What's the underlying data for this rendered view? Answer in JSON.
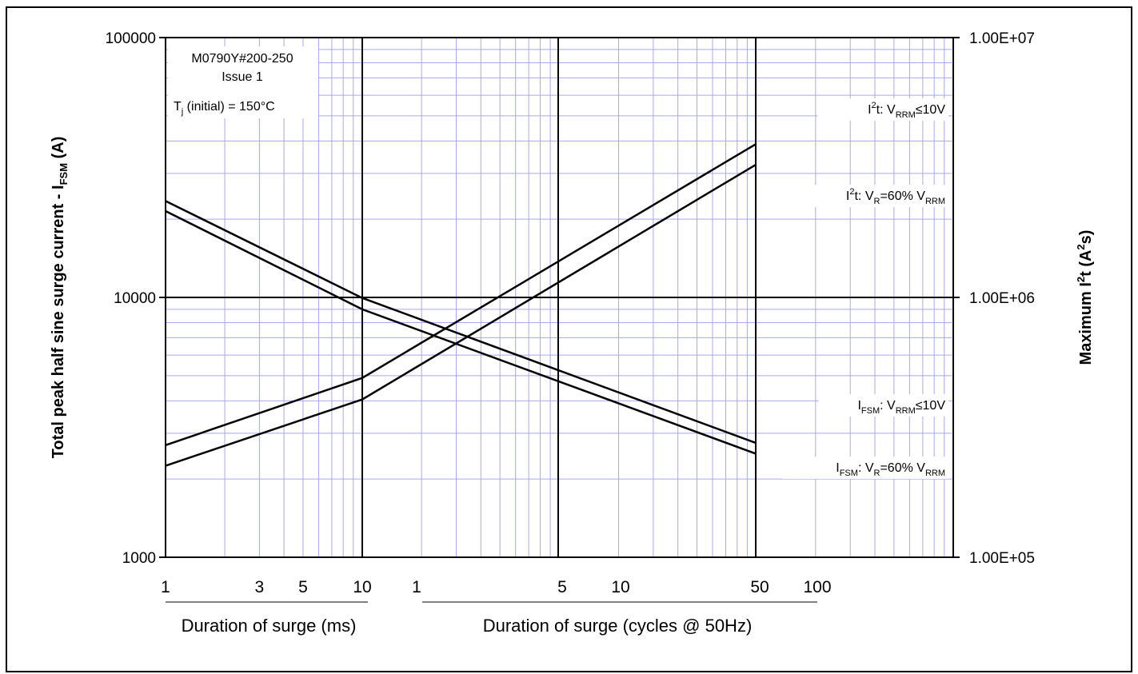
{
  "chart_data": {
    "type": "line",
    "y_scale": "log",
    "y_range": [
      1000,
      100000
    ],
    "y_ticks": [
      "100000",
      "10000",
      "1000"
    ],
    "y2_scale": "log",
    "y2_range": [
      100000,
      10000000
    ],
    "y2_ticks": [
      "1.00E+07",
      "1.00E+06",
      "1.00E+05"
    ],
    "ylabel_parts": [
      "Total peak half sine surge current - I",
      "FSM",
      " (A)"
    ],
    "y2label_parts": [
      "Maximum I",
      "2",
      "t (A",
      "2",
      "s)"
    ],
    "grid": true,
    "x_axes": [
      {
        "label": "Duration of surge (ms)",
        "scale": "log",
        "range": [
          1,
          10
        ],
        "ticks": [
          "1",
          "3",
          "5",
          "10"
        ],
        "tick_values": [
          1,
          3,
          5,
          10
        ]
      },
      {
        "label": "Duration of surge (cycles @ 50Hz)",
        "scale": "log",
        "range": [
          1,
          100
        ],
        "ticks": [
          "1",
          "5",
          "10",
          "50",
          "100"
        ],
        "tick_values": [
          1,
          5,
          10,
          50,
          100
        ]
      }
    ],
    "annotation": {
      "lines": [
        "M0790Y#200-250",
        "Issue 1"
      ],
      "tj": [
        "T",
        "j",
        " (initial) = 150°C"
      ]
    },
    "series": [
      {
        "name": "I2t: VRRM≤10V",
        "axis": "right",
        "label_parts": [
          [
            "I",
            "n"
          ],
          [
            "2",
            "sup"
          ],
          [
            "t: V",
            "n"
          ],
          [
            "RRM",
            "sub"
          ],
          [
            "≤10V",
            "n"
          ]
        ],
        "ms": {
          "x": [
            1,
            10
          ],
          "y": [
            270000,
            490000
          ]
        },
        "cycles": {
          "x": [
            1,
            100
          ],
          "y": [
            490000,
            3900000
          ]
        }
      },
      {
        "name": "I2t: VR=60% VRRM",
        "axis": "right",
        "label_parts": [
          [
            "I",
            "n"
          ],
          [
            "2",
            "sup"
          ],
          [
            "t: V",
            "n"
          ],
          [
            "R",
            "sub"
          ],
          [
            "=60% V",
            "n"
          ],
          [
            "RRM",
            "sub"
          ]
        ],
        "ms": {
          "x": [
            1,
            10
          ],
          "y": [
            225000,
            405000
          ]
        },
        "cycles": {
          "x": [
            1,
            100
          ],
          "y": [
            405000,
            3250000
          ]
        }
      },
      {
        "name": "IFSM: VRRM≤10V",
        "axis": "left",
        "label_parts": [
          [
            "I",
            "n"
          ],
          [
            "FSM",
            "sub"
          ],
          [
            ": V",
            "n"
          ],
          [
            "RRM",
            "sub"
          ],
          [
            "≤10V",
            "n"
          ]
        ],
        "ms": {
          "x": [
            1,
            10
          ],
          "y": [
            23500,
            9950
          ]
        },
        "cycles": {
          "x": [
            1,
            100
          ],
          "y": [
            9950,
            2750
          ]
        }
      },
      {
        "name": "IFSM: VR=60% VRRM",
        "axis": "left",
        "label_parts": [
          [
            "I",
            "n"
          ],
          [
            "FSM",
            "sub"
          ],
          [
            ": V",
            "n"
          ],
          [
            "R",
            "sub"
          ],
          [
            "=60% V",
            "n"
          ],
          [
            "RRM",
            "sub"
          ]
        ],
        "ms": {
          "x": [
            1,
            10
          ],
          "y": [
            21500,
            9000
          ]
        },
        "cycles": {
          "x": [
            1,
            100
          ],
          "y": [
            9000,
            2500
          ]
        }
      }
    ]
  }
}
